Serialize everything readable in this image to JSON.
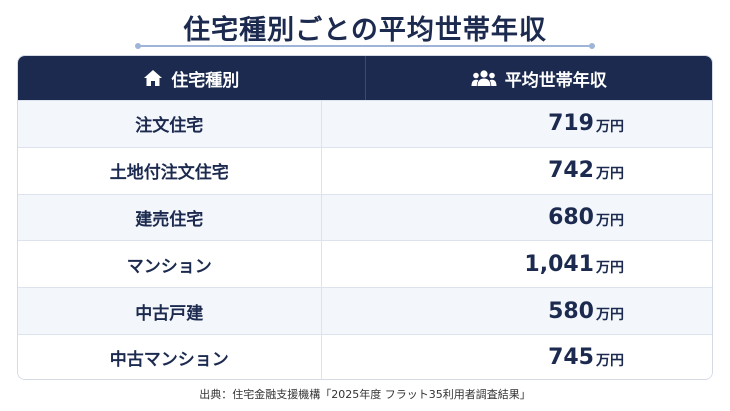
{
  "title": "住宅種別ごとの平均世帯年収",
  "header": {
    "col_type": "住宅種別",
    "col_type_icon": "home-icon",
    "col_income": "平均世帯年収",
    "col_income_icon": "users-icon"
  },
  "rows": [
    {
      "type": "注文住宅",
      "income": "719",
      "unit": "万円"
    },
    {
      "type": "土地付注文住宅",
      "income": "742",
      "unit": "万円"
    },
    {
      "type": "建売住宅",
      "income": "680",
      "unit": "万円"
    },
    {
      "type": "マンション",
      "income": "1,041",
      "unit": "万円"
    },
    {
      "type": "中古戸建",
      "income": "580",
      "unit": "万円"
    },
    {
      "type": "中古マンション",
      "income": "745",
      "unit": "万円"
    }
  ],
  "source": "出典：住宅金融支援機構「2025年度 フラット35利用者調査結果」",
  "colors": {
    "navy": "#1b2a4e",
    "stripe": "#f3f6fb",
    "accent": "#9fb4d9"
  }
}
